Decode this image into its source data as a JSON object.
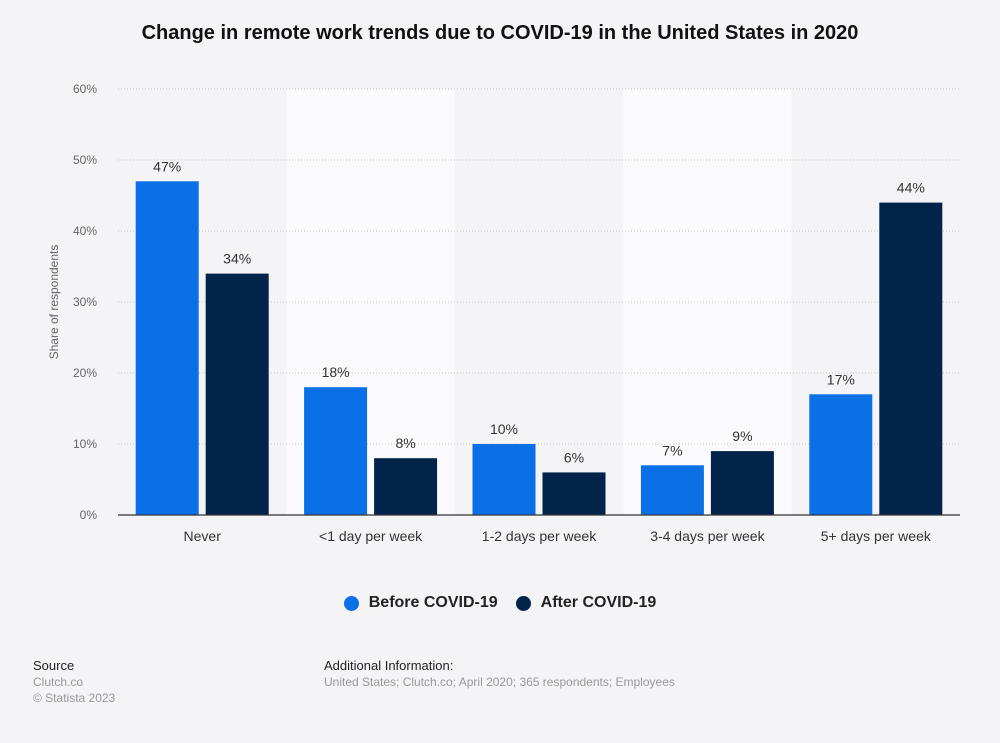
{
  "chart_data": {
    "type": "bar",
    "title": "Change in remote work trends due to COVID-19 in the United States in 2020",
    "ylabel": "Share of respondents",
    "xlabel": "",
    "ylim": [
      0,
      60
    ],
    "yticks": [
      "0%",
      "10%",
      "20%",
      "30%",
      "40%",
      "50%",
      "60%"
    ],
    "grid": true,
    "legend_position": "bottom",
    "categories": [
      "Never",
      "<1 day per week",
      "1-2 days per week",
      "3-4 days per week",
      "5+ days per week"
    ],
    "series": [
      {
        "name": "Before COVID-19",
        "color": "#0b6fe6",
        "values": [
          47,
          18,
          10,
          7,
          17
        ],
        "labels": [
          "47%",
          "18%",
          "10%",
          "7%",
          "17%"
        ]
      },
      {
        "name": "After COVID-19",
        "color": "#03244a",
        "values": [
          34,
          8,
          6,
          9,
          44
        ],
        "labels": [
          "34%",
          "8%",
          "6%",
          "9%",
          "44%"
        ]
      }
    ]
  },
  "footer": {
    "source_heading": "Source",
    "source": "Clutch.co",
    "copyright": "© Statista 2023",
    "info_heading": "Additional Information:",
    "info": "United States; Clutch.co; April 2020; 365 respondents; Employees"
  }
}
